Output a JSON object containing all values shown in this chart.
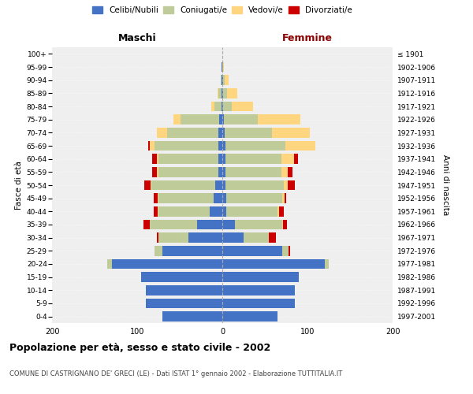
{
  "age_groups": [
    "0-4",
    "5-9",
    "10-14",
    "15-19",
    "20-24",
    "25-29",
    "30-34",
    "35-39",
    "40-44",
    "45-49",
    "50-54",
    "55-59",
    "60-64",
    "65-69",
    "70-74",
    "75-79",
    "80-84",
    "85-89",
    "90-94",
    "95-99",
    "100+"
  ],
  "birth_years": [
    "1997-2001",
    "1992-1996",
    "1987-1991",
    "1982-1986",
    "1977-1981",
    "1972-1976",
    "1967-1971",
    "1962-1966",
    "1957-1961",
    "1952-1956",
    "1947-1951",
    "1942-1946",
    "1937-1941",
    "1932-1936",
    "1927-1931",
    "1922-1926",
    "1917-1921",
    "1912-1916",
    "1907-1911",
    "1902-1906",
    "≤ 1901"
  ],
  "males": {
    "celibi": [
      70,
      90,
      90,
      95,
      130,
      70,
      40,
      30,
      15,
      10,
      8,
      5,
      5,
      5,
      5,
      4,
      1,
      1,
      1,
      1,
      0
    ],
    "coniugati": [
      0,
      0,
      0,
      0,
      5,
      10,
      35,
      55,
      60,
      65,
      75,
      70,
      70,
      75,
      60,
      45,
      8,
      4,
      1,
      0,
      0
    ],
    "vedovi": [
      0,
      0,
      0,
      0,
      0,
      0,
      0,
      0,
      1,
      1,
      1,
      2,
      2,
      5,
      12,
      8,
      4,
      1,
      0,
      0,
      0
    ],
    "divorziati": [
      0,
      0,
      0,
      0,
      0,
      0,
      2,
      8,
      5,
      5,
      8,
      5,
      5,
      2,
      0,
      0,
      0,
      0,
      0,
      0,
      0
    ]
  },
  "females": {
    "nubili": [
      65,
      85,
      85,
      90,
      120,
      70,
      25,
      15,
      5,
      5,
      4,
      4,
      4,
      4,
      3,
      2,
      1,
      1,
      1,
      0,
      0
    ],
    "coniugate": [
      0,
      0,
      0,
      0,
      5,
      8,
      30,
      55,
      60,
      65,
      68,
      65,
      65,
      70,
      55,
      40,
      10,
      5,
      2,
      1,
      0
    ],
    "vedove": [
      0,
      0,
      0,
      0,
      0,
      0,
      0,
      1,
      2,
      3,
      5,
      8,
      15,
      35,
      45,
      50,
      25,
      12,
      4,
      1,
      0
    ],
    "divorziate": [
      0,
      0,
      0,
      0,
      0,
      2,
      8,
      5,
      5,
      2,
      8,
      5,
      5,
      0,
      0,
      0,
      0,
      0,
      0,
      0,
      0
    ]
  },
  "colors": {
    "celibi_nubili": "#4472C4",
    "coniugati": "#BFCC99",
    "vedovi": "#FFD580",
    "divorziati": "#CC0000"
  },
  "xlim": 200,
  "xlabel_left": "Maschi",
  "xlabel_right": "Femmine",
  "ylabel_left": "Fasce di età",
  "ylabel_right": "Anni di nascita",
  "title": "Popolazione per età, sesso e stato civile - 2002",
  "subtitle": "COMUNE DI CASTRIGNANO DE' GRECI (LE) - Dati ISTAT 1° gennaio 2002 - Elaborazione TUTTITALIA.IT",
  "legend_labels": [
    "Celibi/Nubili",
    "Coniugati/e",
    "Vedovi/e",
    "Divorziati/e"
  ],
  "background_color": "#efefef",
  "bar_height": 0.75
}
